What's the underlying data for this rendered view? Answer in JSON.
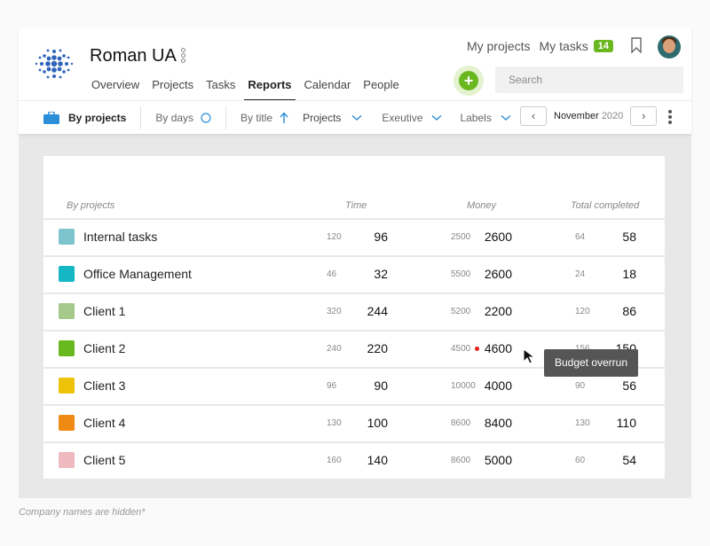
{
  "header": {
    "company": "Roman UA",
    "nav": [
      "Overview",
      "Projects",
      "Tasks",
      "Reports",
      "Calendar",
      "People"
    ],
    "active_nav": "Reports",
    "links": {
      "my_projects": "My projects",
      "my_tasks": "My tasks",
      "tasks_count": "14"
    },
    "add_label": "+",
    "search_placeholder": "Search"
  },
  "toolbar": {
    "by_projects": "By projects",
    "by_days": "By days",
    "by_title": "By title",
    "projects": "Projects",
    "executive": "Exeutive",
    "labels": "Labels",
    "month": "November",
    "year": "2020",
    "prev": "‹",
    "next": "›"
  },
  "table": {
    "headers": {
      "name": "By projects",
      "time": "Time",
      "money": "Money",
      "completed": "Total completed"
    },
    "rows": [
      {
        "name": "Internal tasks",
        "color": "#7ec4cf",
        "time_small": "120",
        "time": "96",
        "money_small": "2500",
        "money": "2600",
        "comp_small": "64",
        "comp": "58"
      },
      {
        "name": "Office Management",
        "color": "#15b7c4",
        "time_small": "46",
        "time": "32",
        "money_small": "5500",
        "money": "2600",
        "comp_small": "24",
        "comp": "18"
      },
      {
        "name": "Client 1",
        "color": "#a4c98a",
        "time_small": "320",
        "time": "244",
        "money_small": "5200",
        "money": "2200",
        "comp_small": "120",
        "comp": "86"
      },
      {
        "name": "Client 2",
        "color": "#6ab820",
        "time_small": "240",
        "time": "220",
        "money_small": "4500",
        "money": "4600",
        "comp_small": "156",
        "comp": "150"
      },
      {
        "name": "Client 3",
        "color": "#efc20a",
        "time_small": "96",
        "time": "90",
        "money_small": "10000",
        "money": "4000",
        "comp_small": "90",
        "comp": "56"
      },
      {
        "name": "Client 4",
        "color": "#ef8a13",
        "time_small": "130",
        "time": "100",
        "money_small": "8600",
        "money": "8400",
        "comp_small": "130",
        "comp": "110"
      },
      {
        "name": "Client 5",
        "color": "#eebac0",
        "time_small": "160",
        "time": "140",
        "money_small": "8600",
        "money": "5000",
        "comp_small": "60",
        "comp": "54"
      }
    ]
  },
  "tooltip": "Budget overrun",
  "footnote": "Company names are hidden*",
  "colors": {
    "accent_green": "#6ab820",
    "accent_blue": "#2b8ed8",
    "overrun_red": "#e02020"
  }
}
